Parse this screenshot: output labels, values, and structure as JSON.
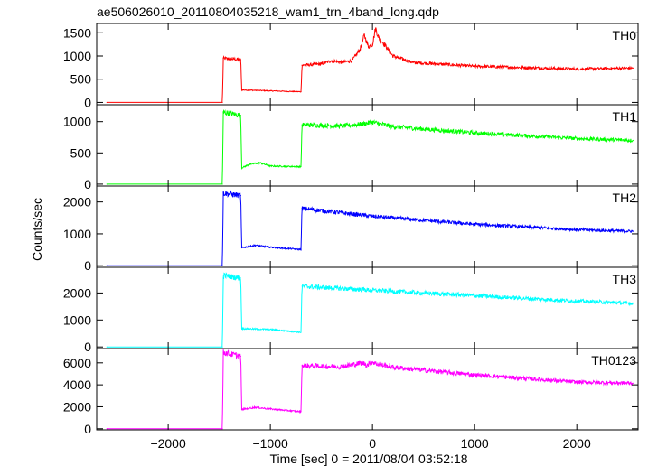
{
  "chart_data": {
    "type": "line",
    "title": "ae506026010_20110804035218_wam1_trn_4band_long.qdp",
    "xlabel": "Time [sec] 0 = 2011/08/04 03:52:18",
    "ylabel": "Counts/sec",
    "xlim": [
      -2700,
      2600
    ],
    "xticks": [
      -2000,
      -1000,
      0,
      1000,
      2000
    ],
    "panels": [
      {
        "name": "TH0",
        "color": "#ff0000",
        "ylim": [
          -50,
          1700
        ],
        "yticks": [
          0,
          500,
          1000,
          1500
        ],
        "points": [
          [
            -2600,
            0
          ],
          [
            -1470,
            0
          ],
          [
            -1460,
            950
          ],
          [
            -1290,
            920
          ],
          [
            -1280,
            270
          ],
          [
            -1000,
            250
          ],
          [
            -700,
            230
          ],
          [
            -690,
            800
          ],
          [
            -500,
            830
          ],
          [
            -400,
            900
          ],
          [
            -300,
            860
          ],
          [
            -200,
            900
          ],
          [
            -120,
            1150
          ],
          [
            -80,
            1450
          ],
          [
            -40,
            1200
          ],
          [
            0,
            1250
          ],
          [
            30,
            1600
          ],
          [
            60,
            1400
          ],
          [
            100,
            1300
          ],
          [
            200,
            1000
          ],
          [
            400,
            860
          ],
          [
            1000,
            780
          ],
          [
            2000,
            720
          ],
          [
            2550,
            740
          ]
        ]
      },
      {
        "name": "TH1",
        "color": "#00ff00",
        "ylim": [
          -30,
          1270
        ],
        "yticks": [
          0,
          500,
          1000
        ],
        "points": [
          [
            -2600,
            0
          ],
          [
            -1470,
            0
          ],
          [
            -1460,
            1150
          ],
          [
            -1290,
            1100
          ],
          [
            -1280,
            260
          ],
          [
            -1200,
            320
          ],
          [
            -1100,
            340
          ],
          [
            -1000,
            290
          ],
          [
            -700,
            280
          ],
          [
            -690,
            950
          ],
          [
            -300,
            930
          ],
          [
            -100,
            960
          ],
          [
            0,
            990
          ],
          [
            200,
            920
          ],
          [
            1000,
            820
          ],
          [
            2000,
            730
          ],
          [
            2550,
            700
          ]
        ]
      },
      {
        "name": "TH2",
        "color": "#0000ff",
        "ylim": [
          -50,
          2500
        ],
        "yticks": [
          0,
          1000,
          2000
        ],
        "points": [
          [
            -2600,
            0
          ],
          [
            -1470,
            0
          ],
          [
            -1460,
            2280
          ],
          [
            -1290,
            2200
          ],
          [
            -1280,
            560
          ],
          [
            -1150,
            640
          ],
          [
            -1000,
            580
          ],
          [
            -700,
            510
          ],
          [
            -690,
            1800
          ],
          [
            0,
            1550
          ],
          [
            1000,
            1300
          ],
          [
            2000,
            1130
          ],
          [
            2550,
            1080
          ]
        ]
      },
      {
        "name": "TH3",
        "color": "#00ffff",
        "ylim": [
          -60,
          2950
        ],
        "yticks": [
          0,
          1000,
          2000
        ],
        "points": [
          [
            -2600,
            0
          ],
          [
            -1470,
            0
          ],
          [
            -1460,
            2650
          ],
          [
            -1290,
            2550
          ],
          [
            -1280,
            680
          ],
          [
            -1000,
            650
          ],
          [
            -700,
            540
          ],
          [
            -690,
            2250
          ],
          [
            0,
            2100
          ],
          [
            1000,
            1900
          ],
          [
            2000,
            1700
          ],
          [
            2550,
            1620
          ]
        ]
      },
      {
        "name": "TH0123",
        "color": "#ff00ff",
        "ylim": [
          -100,
          7300
        ],
        "yticks": [
          0,
          2000,
          4000,
          6000
        ],
        "points": [
          [
            -2600,
            0
          ],
          [
            -1470,
            0
          ],
          [
            -1460,
            6950
          ],
          [
            -1290,
            6600
          ],
          [
            -1280,
            1750
          ],
          [
            -1150,
            1950
          ],
          [
            -1000,
            1800
          ],
          [
            -700,
            1550
          ],
          [
            -690,
            5750
          ],
          [
            -300,
            5650
          ],
          [
            -100,
            6000
          ],
          [
            -50,
            5800
          ],
          [
            0,
            6100
          ],
          [
            40,
            5900
          ],
          [
            200,
            5600
          ],
          [
            1000,
            4900
          ],
          [
            2000,
            4250
          ],
          [
            2550,
            4150
          ]
        ]
      }
    ]
  }
}
